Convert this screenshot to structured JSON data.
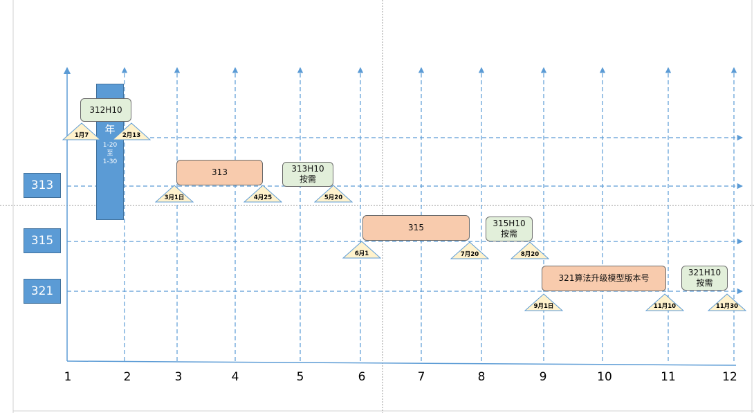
{
  "months": [
    "1",
    "2",
    "3",
    "4",
    "5",
    "6",
    "7",
    "8",
    "9",
    "10",
    "11",
    "12"
  ],
  "version_labels": [
    "313",
    "315",
    "321"
  ],
  "freeze": {
    "char": "年",
    "line1": "1-20",
    "line2": "至",
    "line3": "1-30"
  },
  "boxes": [
    {
      "id": "312h10",
      "lines": [
        "312H10"
      ],
      "kind": "hotfix"
    },
    {
      "id": "313",
      "lines": [
        "313"
      ],
      "kind": "release"
    },
    {
      "id": "313h10",
      "lines": [
        "313H10",
        "按需"
      ],
      "kind": "hotfix"
    },
    {
      "id": "315",
      "lines": [
        "315"
      ],
      "kind": "release"
    },
    {
      "id": "315h10",
      "lines": [
        "315H10",
        "按需"
      ],
      "kind": "hotfix"
    },
    {
      "id": "321",
      "lines": [
        "321算法升级模型版本号"
      ],
      "kind": "release"
    },
    {
      "id": "321h10",
      "lines": [
        "321H10",
        "按需"
      ],
      "kind": "hotfix"
    }
  ],
  "milestones": [
    "1月7",
    "2月13",
    "3月1日",
    "4月25",
    "5月20",
    "6月1",
    "7月20",
    "8月20",
    "9月1日",
    "11月10",
    "11月30"
  ],
  "colors": {
    "axis": "#5b9bd5",
    "release": "#f8cbad",
    "hotfix": "#e2efda",
    "milestone": "#fff2cc",
    "label": "#5b9bd5"
  }
}
